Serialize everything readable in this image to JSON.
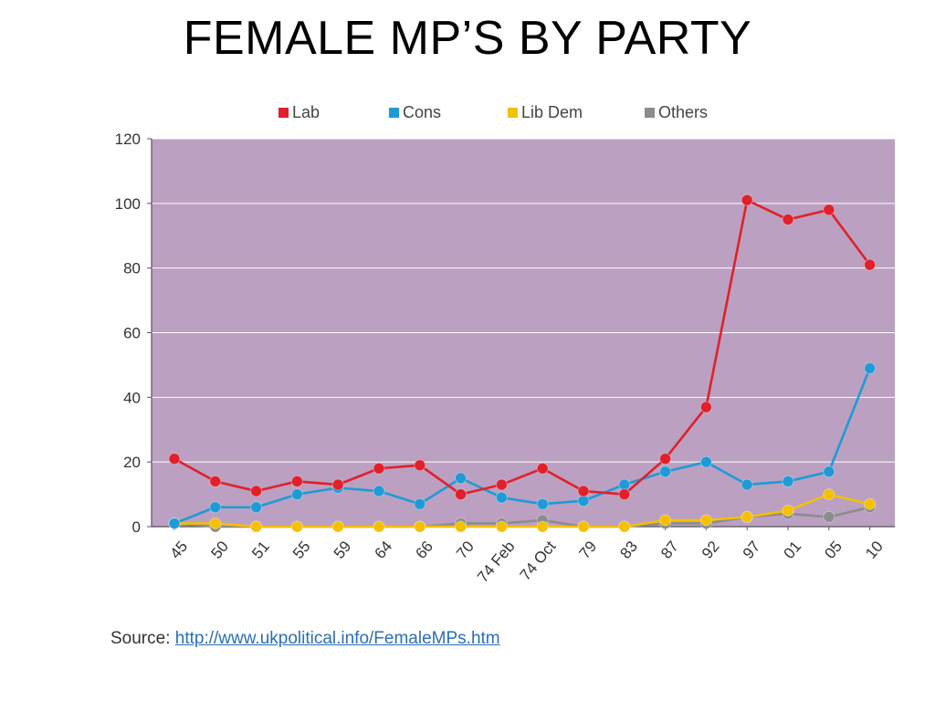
{
  "slide": {
    "title": "FEMALE MP’S BY PARTY"
  },
  "source": {
    "label": "Source:",
    "url_text": "http://www.ukpolitical.info/FemaleMPs.htm"
  },
  "chart_data": {
    "type": "line",
    "title": "",
    "xlabel": "",
    "ylabel": "",
    "ylim": [
      0,
      120
    ],
    "yticks": [
      0,
      20,
      40,
      60,
      80,
      100,
      120
    ],
    "grid": true,
    "legend_position": "top",
    "plot_background": "#bba0c2",
    "categories": [
      "45",
      "50",
      "51",
      "55",
      "59",
      "64",
      "66",
      "70",
      "74 Feb",
      "74 Oct",
      "79",
      "83",
      "87",
      "92",
      "97",
      "01",
      "05",
      "10"
    ],
    "series": [
      {
        "name": "Lab",
        "color": "#e0202a",
        "values": [
          21,
          14,
          11,
          14,
          13,
          18,
          19,
          10,
          13,
          18,
          11,
          10,
          21,
          37,
          101,
          95,
          98,
          81
        ]
      },
      {
        "name": "Cons",
        "color": "#1e9ad6",
        "values": [
          1,
          6,
          6,
          10,
          12,
          11,
          7,
          15,
          9,
          7,
          8,
          13,
          17,
          20,
          13,
          14,
          17,
          49
        ]
      },
      {
        "name": "Lib Dem",
        "color": "#f5c000",
        "values": [
          1,
          1,
          0,
          0,
          0,
          0,
          0,
          0,
          0,
          0,
          0,
          0,
          2,
          2,
          3,
          5,
          10,
          7
        ]
      },
      {
        "name": "Others",
        "color": "#8c8c8c",
        "values": [
          1,
          0,
          0,
          0,
          0,
          0,
          0,
          1,
          1,
          2,
          0,
          0,
          1,
          1,
          3,
          4,
          3,
          6
        ]
      }
    ]
  }
}
